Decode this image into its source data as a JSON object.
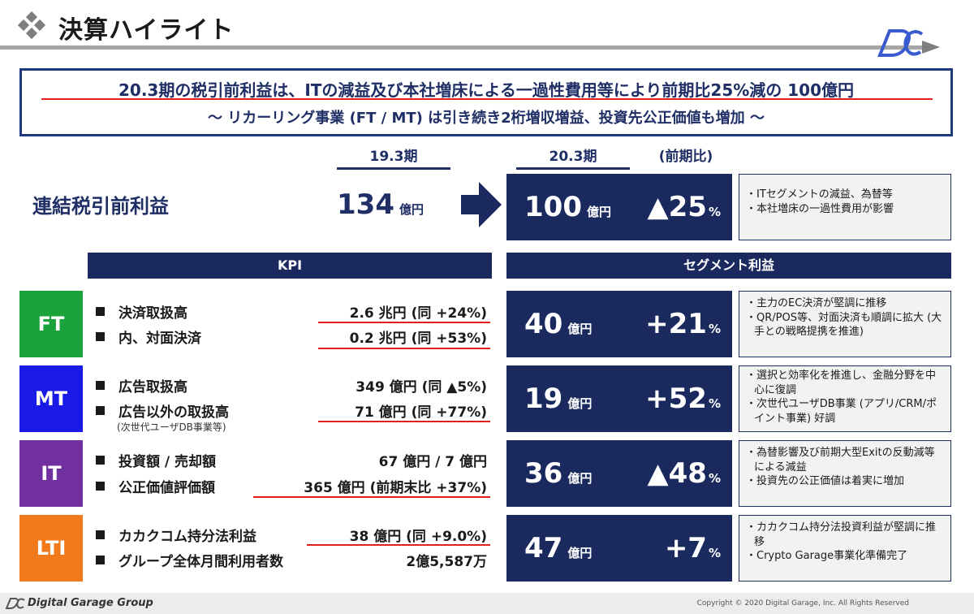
{
  "title": "決算ハイライト",
  "headline": {
    "line1": "20.3期の税引前利益は、ITの減益及び本社増床による一過性費用等により前期比25%減の 100億円",
    "line2": "～ リカーリング事業 (FT / MT) は引き続き2桁増収増益、投資先公正価値も増加 ～"
  },
  "columns": {
    "prev": "19.3期",
    "curr": "20.3期",
    "yoy": "(前期比)"
  },
  "consolidated": {
    "label": "連結税引前利益",
    "prev_value": "134",
    "prev_unit": "億円",
    "curr_value": "100",
    "curr_unit": "億円",
    "change": "▲25",
    "change_unit": "%",
    "notes": [
      "・ITセグメントの減益、為替等",
      "・本社増床の一過性費用が影響"
    ]
  },
  "headers": {
    "kpi": "KPI",
    "segment": "セグメント利益"
  },
  "segments": [
    {
      "tag": "FT",
      "color": "#1aa33a",
      "kpis": [
        {
          "label": "決済取扱高",
          "value": "2.6 兆円 (同 +24%)"
        },
        {
          "label": "内、対面決済",
          "value": "0.2 兆円 (同 +53%)"
        }
      ],
      "profit": "40",
      "unit": "億円",
      "change": "+21",
      "change_unit": "%",
      "notes": [
        "・主力のEC決済が堅調に推移",
        "・QR/POS等、対面決済も順調に拡大 (大手との戦略提携を推進)"
      ]
    },
    {
      "tag": "MT",
      "color": "#1a1ae6",
      "kpis": [
        {
          "label": "広告取扱高",
          "value": "349 億円 (同 ▲5%)"
        },
        {
          "label": "広告以外の取扱高",
          "value": "71 億円 (同 +77%)"
        }
      ],
      "sub": "(次世代ユーザDB事業等)",
      "profit": "19",
      "unit": "億円",
      "change": "+52",
      "change_unit": "%",
      "notes": [
        "・選択と効率化を推進し、金融分野を中心に復調",
        "・次世代ユーザDB事業 (アプリ/CRM/ポイント事業) 好調"
      ]
    },
    {
      "tag": "IT",
      "color": "#7030a0",
      "kpis": [
        {
          "label": "投資額 / 売却額",
          "value": "67 億円 / 7 億円"
        },
        {
          "label": "公正価値評価額",
          "value": "365 億円 (前期末比 +37%)"
        }
      ],
      "profit": "36",
      "unit": "億円",
      "change": "▲48",
      "change_unit": "%",
      "notes": [
        "・為替影響及び前期大型Exitの反動減等による減益",
        "・投資先の公正価値は着実に増加"
      ]
    },
    {
      "tag": "LTI",
      "color": "#f07a1c",
      "kpis": [
        {
          "label": "カカクコム持分法利益",
          "value": "38 億円 (同 +9.0%)"
        },
        {
          "label": "グループ全体月間利用者数",
          "value": "2億5,587万"
        }
      ],
      "profit": "47",
      "unit": "億円",
      "change": "+7",
      "change_unit": "%",
      "notes": [
        "・カカクコム持分法投資利益が堅調に推移",
        "・Crypto Garage事業化準備完了"
      ]
    }
  ],
  "footer": {
    "company": "Digital Garage Group",
    "copyright": "Copyright © 2020 Digital Garage, Inc. All Rights Reserved"
  }
}
